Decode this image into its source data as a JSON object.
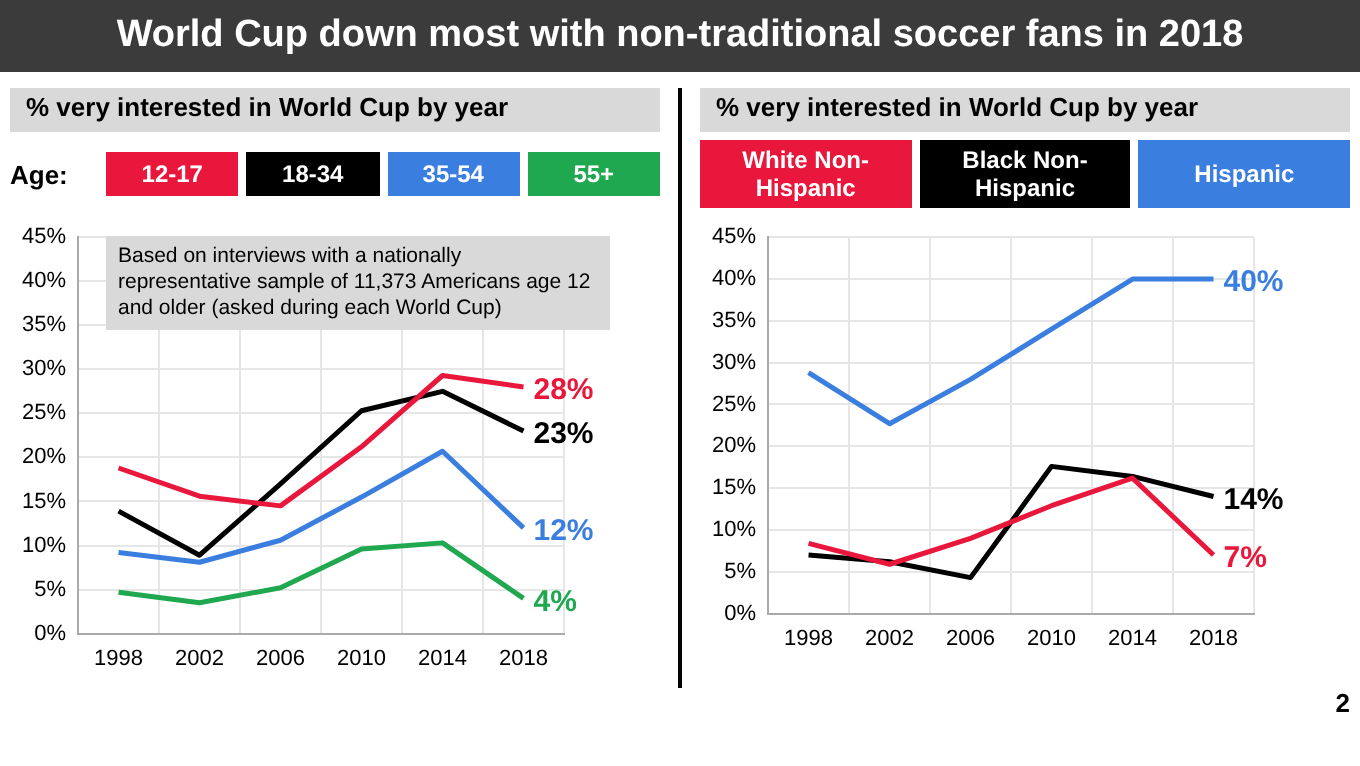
{
  "chart_data": [
    {
      "type": "line",
      "title": "World Cup down most with non-traditional soccer fans in 2018",
      "subtitle": "% very interested in World Cup by year",
      "legend_title": "Age:",
      "legend": "top",
      "grid": true,
      "marker": "none",
      "line_style": "solid",
      "categories": [
        "1998",
        "2002",
        "2006",
        "2010",
        "2014",
        "2018"
      ],
      "ylim": [
        0,
        45
      ],
      "yticks": [
        {
          "value": 0,
          "label": "0%"
        },
        {
          "value": 5,
          "label": "5%"
        },
        {
          "value": 10,
          "label": "10%"
        },
        {
          "value": 15,
          "label": "15%"
        },
        {
          "value": 20,
          "label": "20%"
        },
        {
          "value": 25,
          "label": "25%"
        },
        {
          "value": 30,
          "label": "30%"
        },
        {
          "value": 35,
          "label": "35%"
        },
        {
          "value": 40,
          "label": "40%"
        },
        {
          "value": 45,
          "label": "45%"
        }
      ],
      "annotations": [
        "Based on interviews with a nationally representative sample of 11,373 Americans age 12 and older (asked during each World Cup)"
      ],
      "series": [
        {
          "name": "12-17",
          "color": "#e8173b",
          "values": [
            18.8,
            15.6,
            14.5,
            21.2,
            29.3,
            28
          ],
          "value_labels": [
            null,
            null,
            null,
            null,
            null,
            "28%"
          ]
        },
        {
          "name": "18-34",
          "color": "#000000",
          "values": [
            13.9,
            8.9,
            17,
            25.3,
            27.5,
            23
          ],
          "value_labels": [
            null,
            null,
            null,
            null,
            null,
            "23%"
          ]
        },
        {
          "name": "35-54",
          "color": "#3a7ee0",
          "values": [
            9.2,
            8.1,
            10.6,
            15.5,
            20.7,
            12
          ],
          "value_labels": [
            null,
            null,
            null,
            null,
            null,
            "12%"
          ]
        },
        {
          "name": "55+",
          "color": "#1fa84f",
          "values": [
            4.7,
            3.5,
            5.2,
            9.6,
            10.3,
            4
          ],
          "value_labels": [
            null,
            null,
            null,
            null,
            null,
            "4%"
          ]
        }
      ]
    },
    {
      "type": "line",
      "subtitle": "% very interested in World Cup by year",
      "legend": "top",
      "grid": true,
      "marker": "none",
      "line_style": "solid",
      "categories": [
        "1998",
        "2002",
        "2006",
        "2010",
        "2014",
        "2018"
      ],
      "ylim": [
        0,
        45
      ],
      "yticks": [
        {
          "value": 0,
          "label": "0%"
        },
        {
          "value": 5,
          "label": "5%"
        },
        {
          "value": 10,
          "label": "10%"
        },
        {
          "value": 15,
          "label": "15%"
        },
        {
          "value": 20,
          "label": "20%"
        },
        {
          "value": 25,
          "label": "25%"
        },
        {
          "value": 30,
          "label": "30%"
        },
        {
          "value": 35,
          "label": "35%"
        },
        {
          "value": 40,
          "label": "40%"
        },
        {
          "value": 45,
          "label": "45%"
        }
      ],
      "annotations": [
        "2"
      ],
      "series": [
        {
          "name": "White Non-Hispanic",
          "color": "#e8173b",
          "values": [
            8.4,
            5.9,
            9,
            12.9,
            16.2,
            7
          ],
          "value_labels": [
            null,
            null,
            null,
            null,
            null,
            "7%"
          ]
        },
        {
          "name": "Black Non-Hispanic",
          "color": "#000000",
          "values": [
            7,
            6.2,
            4.3,
            17.6,
            16.4,
            14
          ],
          "value_labels": [
            null,
            null,
            null,
            null,
            null,
            "14%"
          ]
        },
        {
          "name": "Hispanic",
          "color": "#3a7ee0",
          "values": [
            28.8,
            22.7,
            28,
            34,
            40,
            40
          ],
          "value_labels": [
            null,
            null,
            null,
            null,
            null,
            "40%"
          ]
        }
      ]
    }
  ]
}
